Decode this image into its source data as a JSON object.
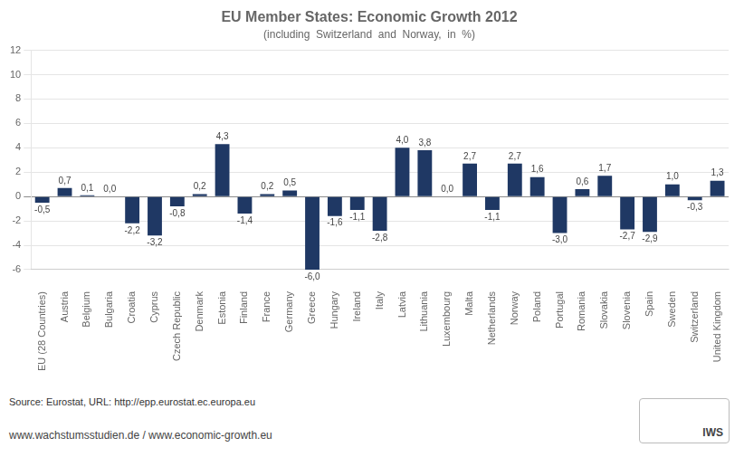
{
  "chart_data": {
    "type": "bar",
    "title": "EU Member States: Economic Growth 2012",
    "subtitle": "(including  Switzerland  and  Norway,  in  %)",
    "categories": [
      "EU (28 Countries)",
      "Austria",
      "Belgium",
      "Bulgaria",
      "Croatia",
      "Cyprus",
      "Czech Republic",
      "Denmark",
      "Estonia",
      "Finland",
      "France",
      "Germany",
      "Greece",
      "Hungary",
      "Ireland",
      "Italy",
      "Latvia",
      "Lithuania",
      "Luxembourg",
      "Malta",
      "Netherlands",
      "Norway",
      "Poland",
      "Portugal",
      "Romania",
      "Slovakia",
      "Slovenia",
      "Spain",
      "Sweden",
      "Switzerland",
      "United Kingdom"
    ],
    "values": [
      -0.5,
      0.7,
      0.1,
      0.0,
      -2.2,
      -3.2,
      -0.8,
      0.2,
      4.3,
      -1.4,
      0.2,
      0.5,
      -6.0,
      -1.6,
      -1.1,
      -2.8,
      4.0,
      3.8,
      0.0,
      2.7,
      -1.1,
      2.7,
      1.6,
      -3.0,
      0.6,
      1.7,
      -2.7,
      -2.9,
      1.0,
      -0.3,
      1.3
    ],
    "value_labels": [
      "-0,5",
      "0,7",
      "0,1",
      "0,0",
      "-2,2",
      "-3,2",
      "-0,8",
      "0,2",
      "4,3",
      "-1,4",
      "0,2",
      "0,5",
      "-6,0",
      "-1,6",
      "-1,1",
      "-2,8",
      "4,0",
      "3,8",
      "0,0",
      "2,7",
      "-1,1",
      "2,7",
      "1,6",
      "-3,0",
      "0,6",
      "1,7",
      "-2,7",
      "-2,9",
      "1,0",
      "-0,3",
      "1,3"
    ],
    "color": "#1F3864",
    "ylim": [
      -6,
      12
    ],
    "yticks": [
      -6,
      -4,
      -2,
      0,
      2,
      4,
      6,
      8,
      10,
      12
    ],
    "grid": true,
    "data_labels": true,
    "annotations": [
      "Source: Eurostat, URL: http://epp.eurostat.ec.europa.eu",
      "www.wachstumsstudien.de  /  www.economic-growth.eu",
      "IWS"
    ]
  }
}
